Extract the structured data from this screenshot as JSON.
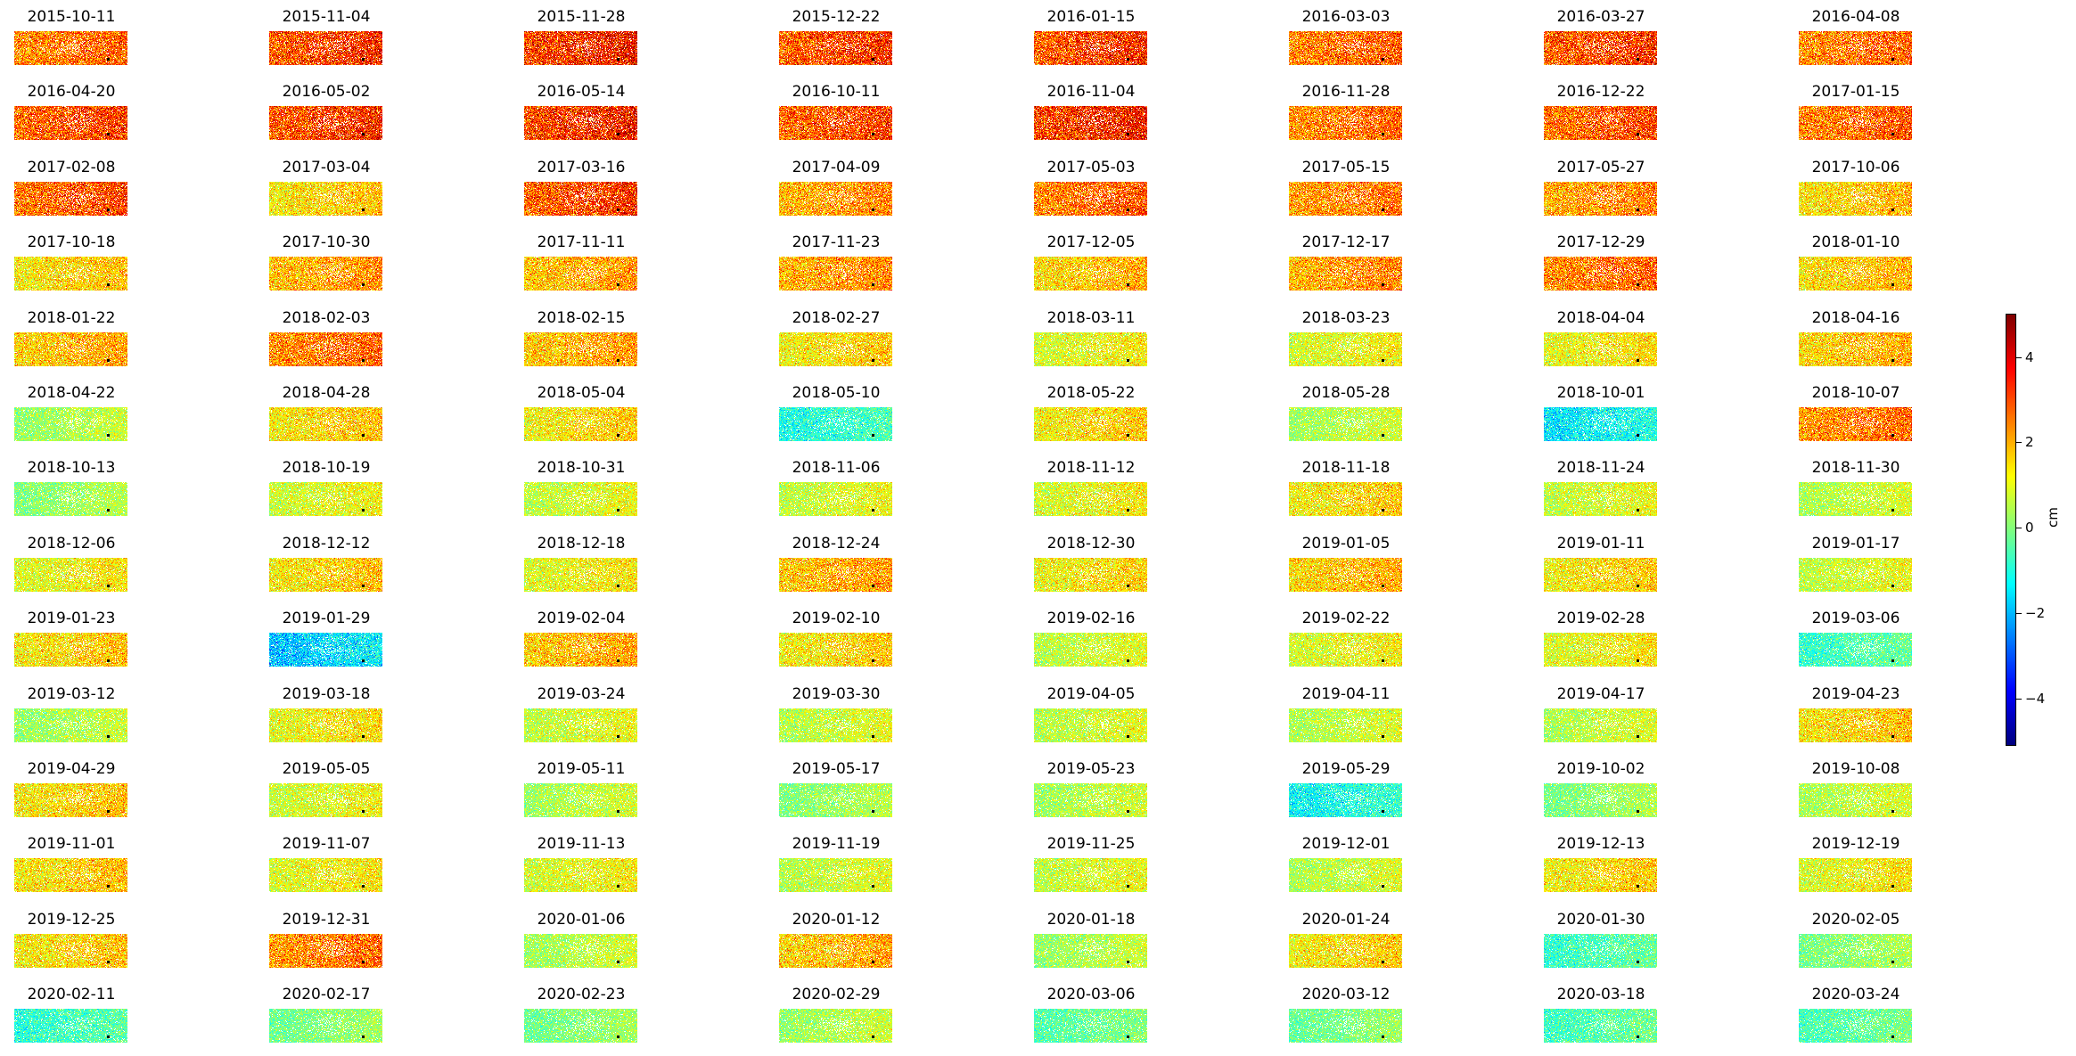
{
  "figure": {
    "panel_dates": [
      "2015-10-11",
      "2015-11-04",
      "2015-11-28",
      "2015-12-22",
      "2016-01-15",
      "2016-03-03",
      "2016-03-27",
      "2016-04-08",
      "2016-04-20",
      "2016-05-02",
      "2016-05-14",
      "2016-10-11",
      "2016-11-04",
      "2016-11-28",
      "2016-12-22",
      "2017-01-15",
      "2017-02-08",
      "2017-03-04",
      "2017-03-16",
      "2017-04-09",
      "2017-05-03",
      "2017-05-15",
      "2017-05-27",
      "2017-10-06",
      "2017-10-18",
      "2017-10-30",
      "2017-11-11",
      "2017-11-23",
      "2017-12-05",
      "2017-12-17",
      "2017-12-29",
      "2018-01-10",
      "2018-01-22",
      "2018-02-03",
      "2018-02-15",
      "2018-02-27",
      "2018-03-11",
      "2018-03-23",
      "2018-04-04",
      "2018-04-16",
      "2018-04-22",
      "2018-04-28",
      "2018-05-04",
      "2018-05-10",
      "2018-05-22",
      "2018-05-28",
      "2018-10-01",
      "2018-10-07",
      "2018-10-13",
      "2018-10-19",
      "2018-10-31",
      "2018-11-06",
      "2018-11-12",
      "2018-11-18",
      "2018-11-24",
      "2018-11-30",
      "2018-12-06",
      "2018-12-12",
      "2018-12-18",
      "2018-12-24",
      "2018-12-30",
      "2019-01-05",
      "2019-01-11",
      "2019-01-17",
      "2019-01-23",
      "2019-01-29",
      "2019-02-04",
      "2019-02-10",
      "2019-02-16",
      "2019-02-22",
      "2019-02-28",
      "2019-03-06",
      "2019-03-12",
      "2019-03-18",
      "2019-03-24",
      "2019-03-30",
      "2019-04-05",
      "2019-04-11",
      "2019-04-17",
      "2019-04-23",
      "2019-04-29",
      "2019-05-05",
      "2019-05-11",
      "2019-05-17",
      "2019-05-23",
      "2019-05-29",
      "2019-10-02",
      "2019-10-08",
      "2019-11-01",
      "2019-11-07",
      "2019-11-13",
      "2019-11-19",
      "2019-11-25",
      "2019-12-01",
      "2019-12-13",
      "2019-12-19",
      "2019-12-25",
      "2019-12-31",
      "2020-01-06",
      "2020-01-12",
      "2020-01-18",
      "2020-01-24",
      "2020-01-30",
      "2020-02-05",
      "2020-02-11",
      "2020-02-17",
      "2020-02-23",
      "2020-02-29",
      "2020-03-06",
      "2020-03-12",
      "2020-03-18",
      "2020-03-24"
    ],
    "panel_mean_cm": [
      2.6,
      3.2,
      3.4,
      3.1,
      3.2,
      2.7,
      3.1,
      2.6,
      3.0,
      3.2,
      3.4,
      3.0,
      3.4,
      2.6,
      2.9,
      2.7,
      2.9,
      1.6,
      3.1,
      2.2,
      2.7,
      2.4,
      2.3,
      1.7,
      1.6,
      2.1,
      2.0,
      2.2,
      1.8,
      2.2,
      2.6,
      1.7,
      1.9,
      2.6,
      2.0,
      1.5,
      1.1,
      1.1,
      1.3,
      1.8,
      0.5,
      1.6,
      1.5,
      -0.8,
      1.5,
      0.6,
      -1.2,
      2.5,
      0.3,
      1.0,
      0.9,
      0.9,
      1.1,
      1.5,
      0.9,
      0.7,
      1.2,
      1.6,
      1.2,
      2.0,
      1.4,
      1.8,
      1.5,
      0.9,
      1.6,
      -1.6,
      1.9,
      1.5,
      0.8,
      1.1,
      1.2,
      -0.5,
      0.5,
      1.3,
      0.9,
      0.8,
      0.8,
      0.7,
      0.7,
      1.6,
      1.6,
      1.0,
      0.6,
      0.3,
      0.6,
      -1.0,
      0.2,
      0.7,
      1.6,
      1.2,
      1.1,
      0.8,
      0.9,
      0.7,
      1.5,
      1.2,
      1.6,
      2.5,
      0.6,
      1.9,
      0.5,
      1.5,
      -0.5,
      0.2,
      -0.6,
      0.1,
      0.1,
      0.5,
      -0.2,
      0.0,
      -0.4,
      -0.3
    ],
    "colorscale": {
      "name": "jet",
      "vmin": -5,
      "vmax": 5,
      "tick_labels": [
        "4",
        "2",
        "0",
        "−2",
        "−4"
      ],
      "unit": "cm"
    }
  }
}
